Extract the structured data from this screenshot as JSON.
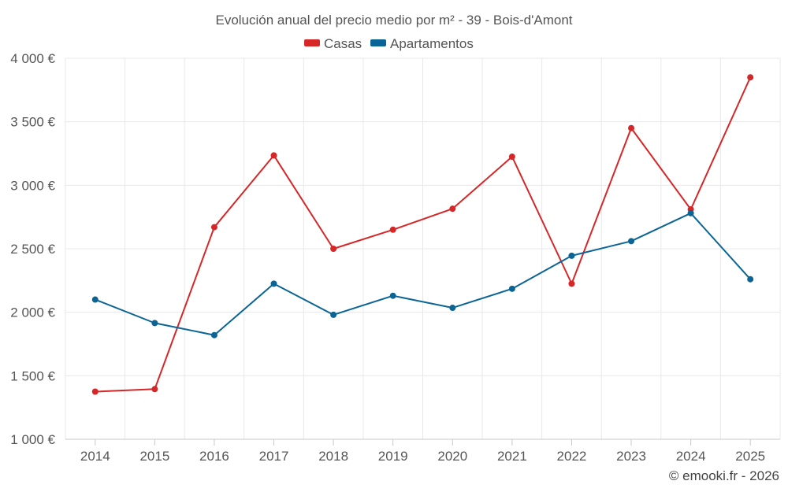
{
  "chart_data": {
    "type": "line",
    "title": "Evolución anual del precio medio por m² - 39 - Bois-d'Amont",
    "xlabel": "",
    "ylabel": "",
    "categories": [
      "2014",
      "2015",
      "2016",
      "2017",
      "2018",
      "2019",
      "2020",
      "2021",
      "2022",
      "2023",
      "2024",
      "2025"
    ],
    "ylim": [
      1000,
      4000
    ],
    "yticks": [
      1000,
      1500,
      2000,
      2500,
      3000,
      3500,
      4000
    ],
    "ytick_labels": [
      "1 000 €",
      "1 500 €",
      "2 000 €",
      "2 500 €",
      "3 000 €",
      "3 500 €",
      "4 000 €"
    ],
    "grid": true,
    "legend_position": "top-center",
    "series": [
      {
        "name": "Casas",
        "color": "#d62728",
        "values": [
          1375,
          1395,
          2670,
          3235,
          2500,
          2650,
          2815,
          3225,
          2225,
          3450,
          2810,
          3850
        ]
      },
      {
        "name": "Apartamentos",
        "color": "#0b6496",
        "values": [
          2100,
          1915,
          1820,
          2225,
          1980,
          2130,
          2035,
          2185,
          2445,
          2560,
          2780,
          2260
        ]
      }
    ],
    "credit": "© emooki.fr - 2026"
  }
}
